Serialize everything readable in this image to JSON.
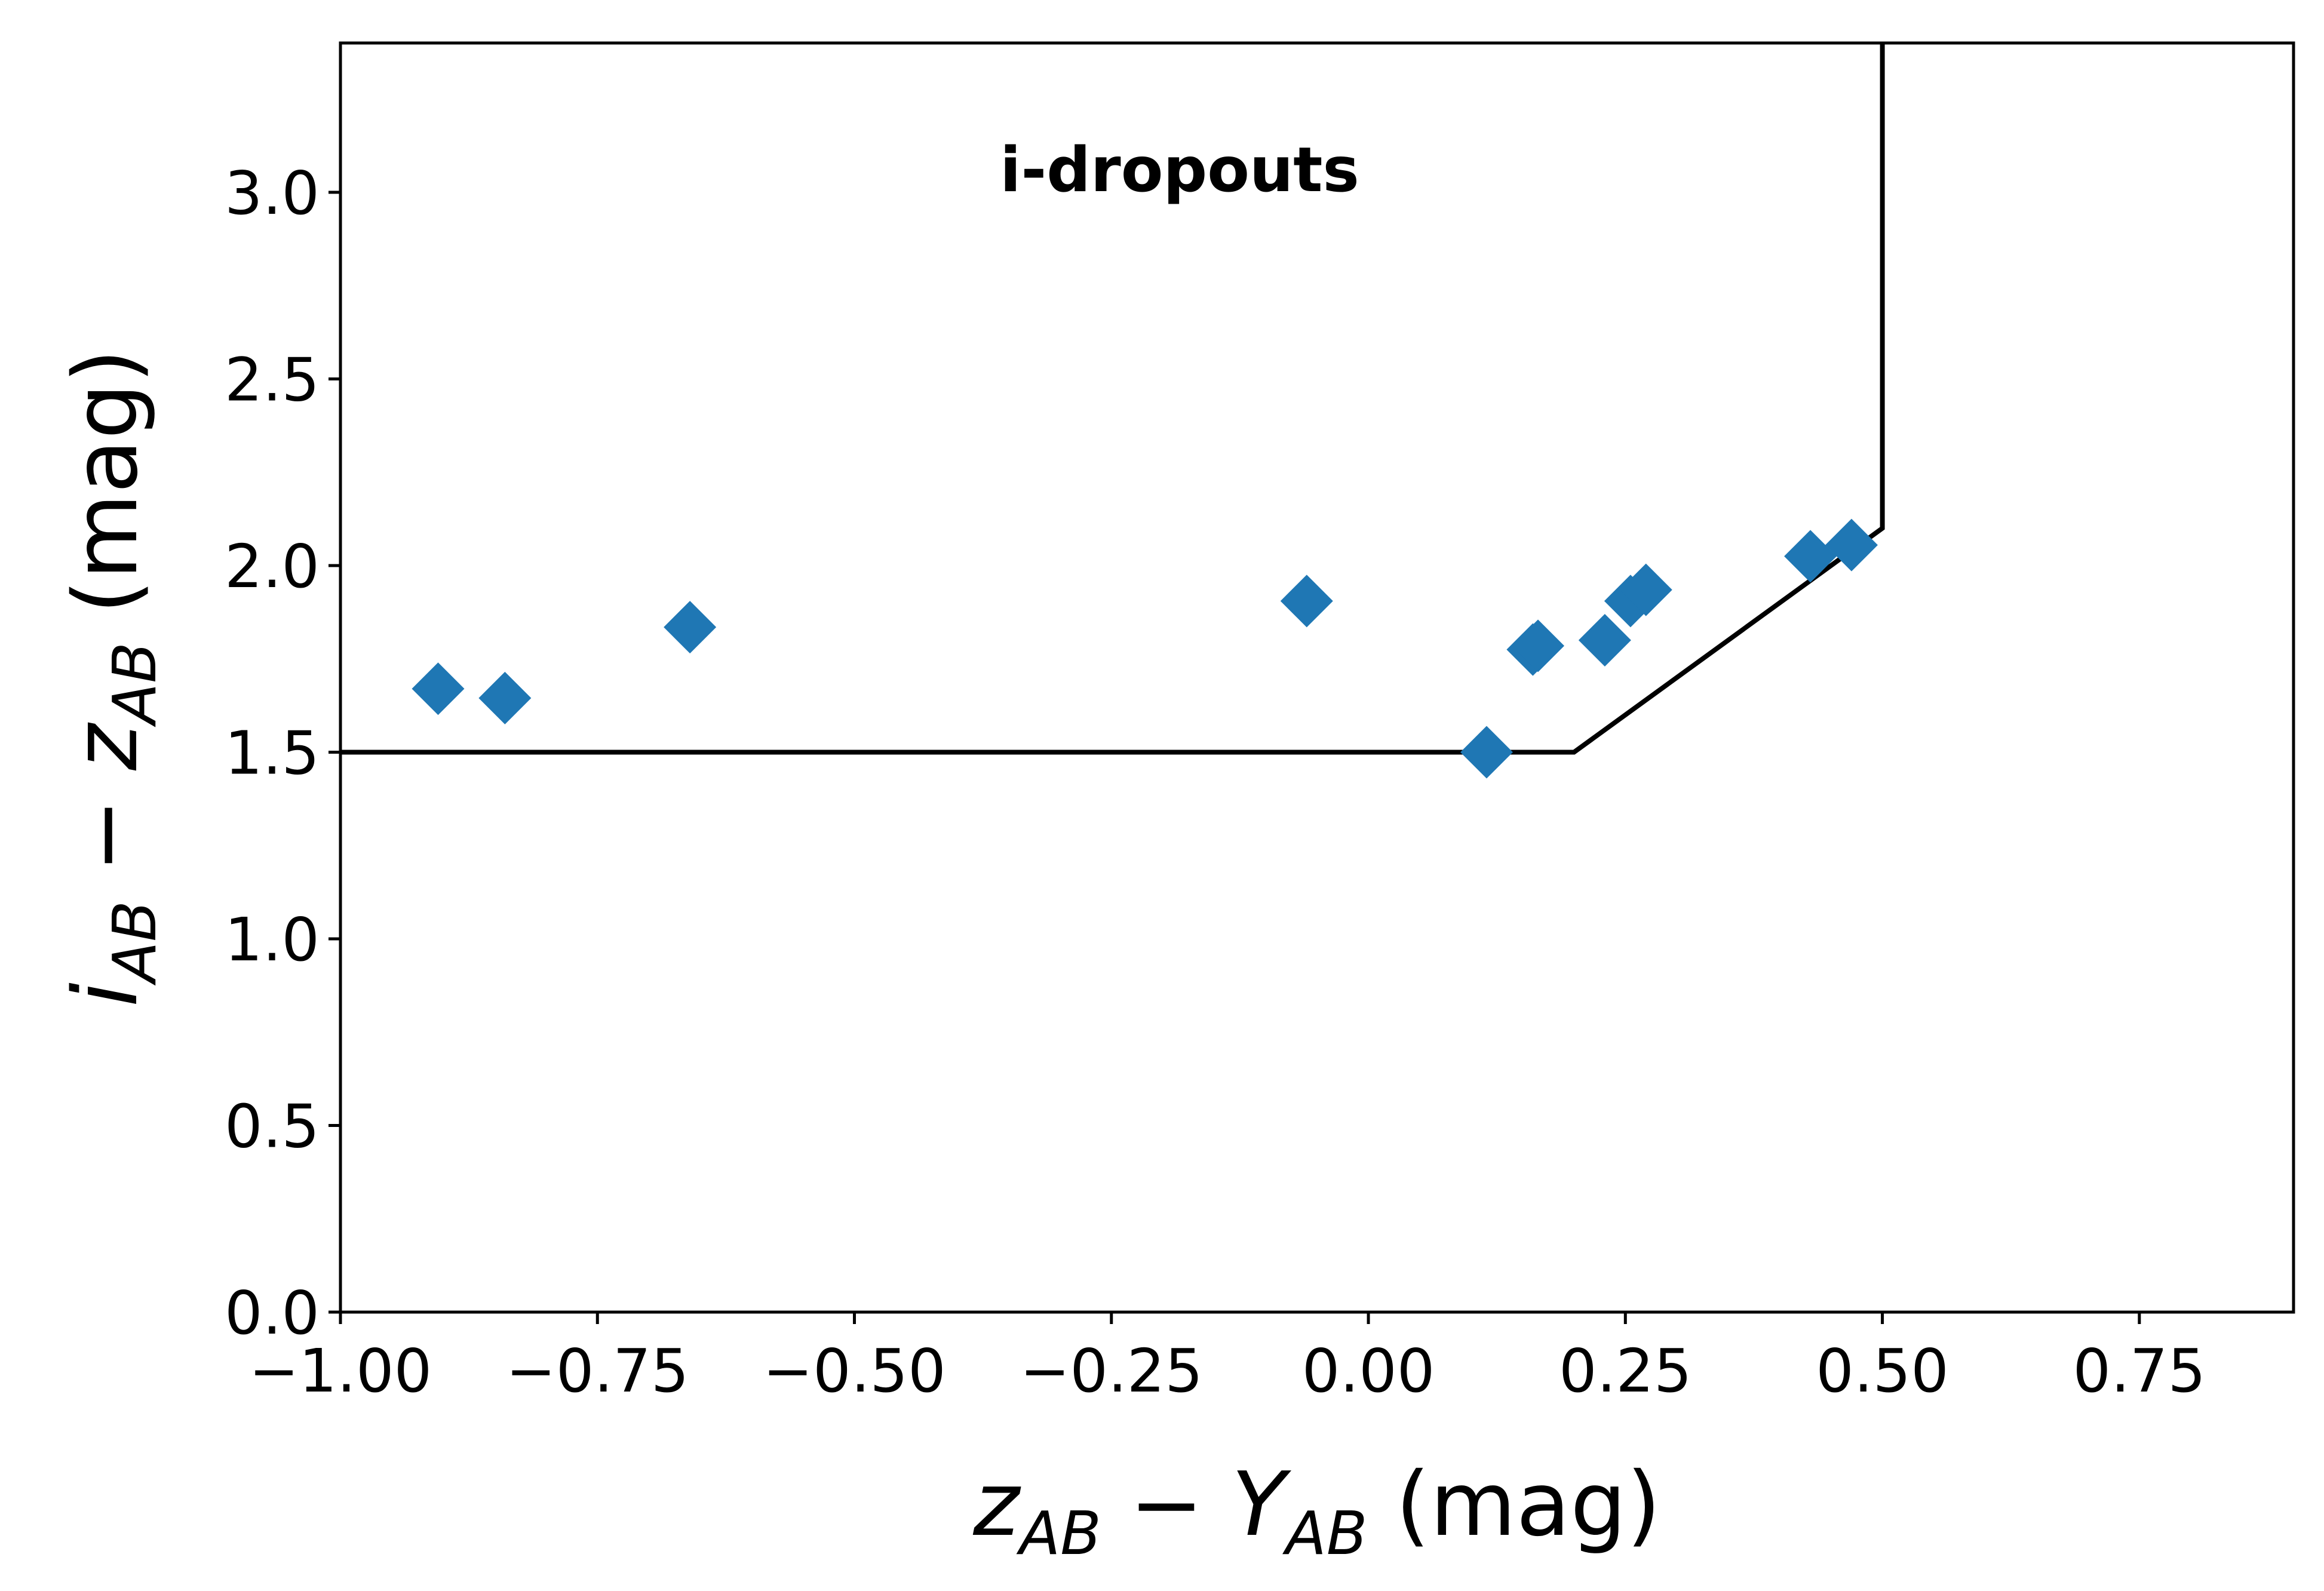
{
  "chart_data": {
    "type": "scatter",
    "title": "",
    "annotation": "i-dropouts",
    "xlabel": {
      "v1": "z",
      "s1": "AB",
      "op": " − ",
      "v2": "Y",
      "s2": "AB",
      "unit": " (mag)"
    },
    "ylabel": {
      "v1": "i",
      "s1": "AB",
      "op": " − ",
      "v2": "z",
      "s2": "AB",
      "unit": " (mag)"
    },
    "xlim": [
      -1.0,
      0.9
    ],
    "ylim": [
      0.0,
      3.4
    ],
    "grid": false,
    "xticks": [
      -1.0,
      -0.75,
      -0.5,
      -0.25,
      0.0,
      0.25,
      0.5,
      0.75
    ],
    "xtick_labels": [
      "−1.00",
      "−0.75",
      "−0.50",
      "−0.25",
      "0.00",
      "0.25",
      "0.50",
      "0.75"
    ],
    "yticks": [
      0.0,
      0.5,
      1.0,
      1.5,
      2.0,
      2.5,
      3.0
    ],
    "ytick_labels": [
      "0.0",
      "0.5",
      "1.0",
      "1.5",
      "2.0",
      "2.5",
      "3.0"
    ],
    "series": [
      {
        "marker": "diamond",
        "color": "#1f77b4",
        "x": [
          -0.905,
          -0.84,
          -0.66,
          -0.06,
          0.115,
          0.16,
          0.165,
          0.23,
          0.255,
          0.27,
          0.43,
          0.47
        ],
        "y": [
          1.67,
          1.645,
          1.835,
          1.905,
          1.5,
          1.775,
          1.785,
          1.8,
          1.905,
          1.935,
          2.025,
          2.055
        ]
      }
    ],
    "selection_boundary": {
      "color": "#000000",
      "x": [
        -1.0,
        0.2,
        0.5,
        0.5
      ],
      "y": [
        1.5,
        1.5,
        2.1,
        3.4
      ]
    }
  }
}
